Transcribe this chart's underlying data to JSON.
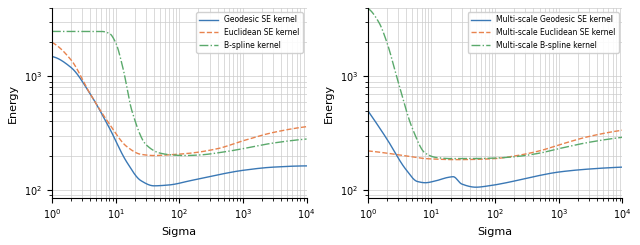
{
  "left_plot": {
    "xlabel": "Sigma",
    "ylabel": "Energy",
    "xlim": [
      1.0,
      10000.0
    ],
    "ylim": [
      85,
      4000
    ],
    "legend": [
      "Geodesic SE kernel",
      "Euclidean SE kernel",
      "B-spline kernel"
    ],
    "legend_styles": [
      "-",
      "--",
      "-."
    ]
  },
  "right_plot": {
    "xlabel": "Sigma",
    "ylabel": "Energy",
    "xlim": [
      1.0,
      10000.0
    ],
    "ylim": [
      85,
      4000
    ],
    "legend": [
      "Multi-scale Geodesic SE kernel",
      "Multi-scale Euclidean SE kernel",
      "Multi-scale B-spline kernel"
    ],
    "legend_styles": [
      "-",
      "--",
      "-."
    ]
  },
  "colors": {
    "geodesic": "#3a78b5",
    "euclidean": "#e8834e",
    "bspline": "#5aa96b"
  }
}
